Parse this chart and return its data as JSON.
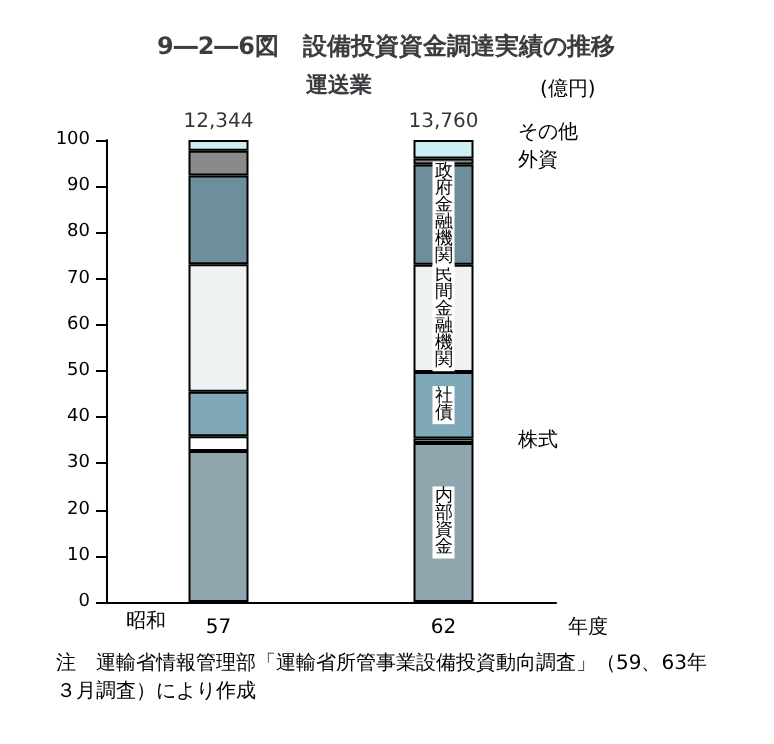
{
  "chart_data": {
    "type": "bar",
    "title": "9―2―6図　設備投資資金調達実績の推移",
    "subtitle": "運送業",
    "xlabel": "年度",
    "categories": [
      "57",
      "62"
    ],
    "stacked": true,
    "series": [
      {
        "name": "内部資金",
        "color": "#8fa6ae",
        "values": [
          32.7,
          34.4
        ]
      },
      {
        "name": "株式",
        "color": "#ffffff",
        "values": [
          3.2,
          1.0
        ]
      },
      {
        "name": "社債",
        "color": "#7fa8b8",
        "values": [
          9.6,
          14.4
        ]
      },
      {
        "name": "民間金融機関",
        "color": "#eef2f2",
        "values": [
          27.6,
          23.2
        ]
      },
      {
        "name": "政府金融機関",
        "color": "#6f8e9c",
        "values": [
          19.2,
          21.7
        ]
      },
      {
        "name": "外資",
        "color": "#8a8a8a",
        "values": [
          5.4,
          1.3
        ]
      },
      {
        "name": "その他",
        "color": "#cdeef4",
        "values": [
          2.3,
          4.0
        ]
      }
    ],
    "ylim": [
      0,
      100
    ],
    "yticks": [
      0,
      10,
      20,
      30,
      40,
      50,
      60,
      70,
      80,
      90,
      100
    ],
    "grid": false,
    "legend": false,
    "annotations": [
      "(億円)",
      "昭和",
      "注　運輸省情報管理部「運輸省所管事業設備投資動向調査」（59、63年３月調査）により作成",
      {
        "text": "12,344",
        "x": "57",
        "y": 100
      },
      {
        "text": "13,760",
        "x": "62",
        "y": 100
      }
    ]
  }
}
